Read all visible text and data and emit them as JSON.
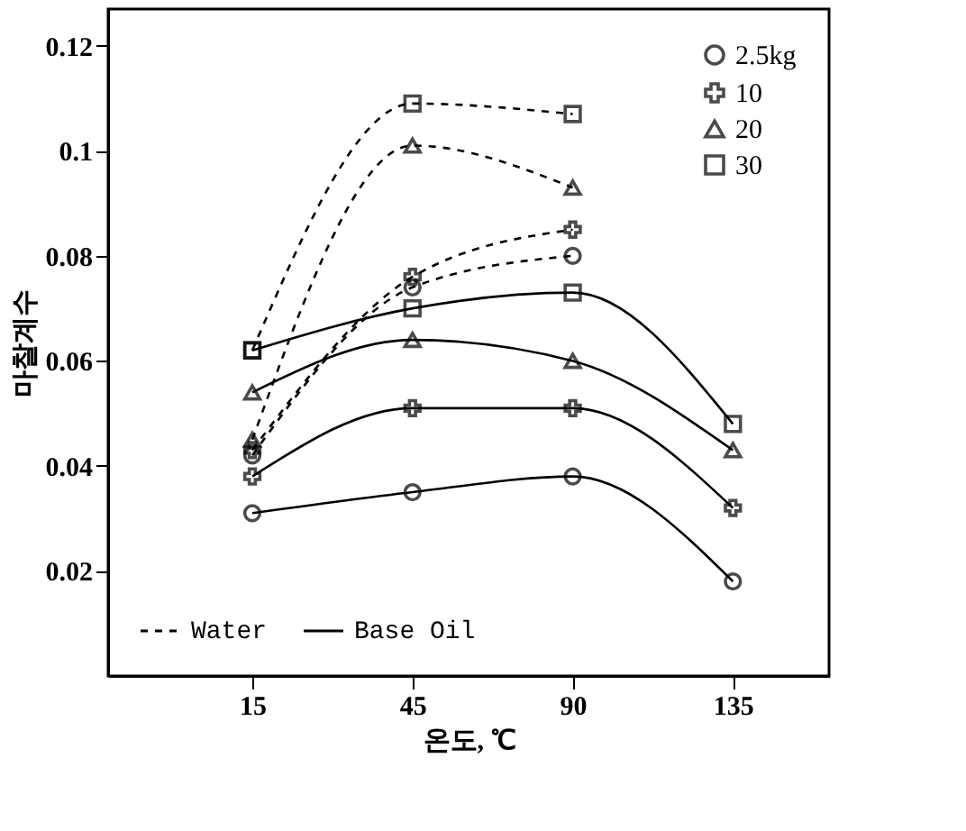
{
  "chart_data": {
    "type": "line",
    "xlabel": "온도, ℃",
    "ylabel": "마찰계수",
    "categories": [
      "15",
      "45",
      "90",
      "135"
    ],
    "ylim": [
      0,
      0.127
    ],
    "yticks": [
      0.02,
      0.04,
      0.06,
      0.08,
      0.1,
      0.12
    ],
    "grid": false,
    "legend": "top right",
    "annotations": [
      "Water",
      "Base Oil"
    ],
    "series": [
      {
        "name": "2.5kg",
        "color": "#000000",
        "marker": "circle",
        "line_style": "dashed",
        "values": [
          0.042,
          0.074,
          0.08,
          null
        ]
      },
      {
        "name": "10",
        "color": "#000000",
        "marker": "cross",
        "line_style": "dashed",
        "values": [
          0.043,
          0.076,
          0.085,
          null
        ]
      },
      {
        "name": "20",
        "color": "#000000",
        "marker": "triangle",
        "line_style": "dashed",
        "values": [
          0.045,
          0.101,
          0.093,
          null
        ]
      },
      {
        "name": "30",
        "color": "#000000",
        "marker": "square",
        "line_style": "dashed",
        "values": [
          0.062,
          0.109,
          0.107,
          null
        ]
      },
      {
        "color": "#000000",
        "marker": "circle",
        "line_style": "solid",
        "values": [
          0.031,
          0.035,
          0.038,
          0.018
        ]
      },
      {
        "color": "#000000",
        "marker": "cross",
        "line_style": "solid",
        "values": [
          0.038,
          0.051,
          0.051,
          0.032
        ]
      },
      {
        "color": "#000000",
        "marker": "triangle",
        "line_style": "solid",
        "values": [
          0.054,
          0.064,
          0.06,
          0.043
        ]
      },
      {
        "color": "#000000",
        "marker": "square",
        "line_style": "solid",
        "values": [
          0.062,
          0.07,
          0.073,
          0.048
        ]
      }
    ]
  }
}
